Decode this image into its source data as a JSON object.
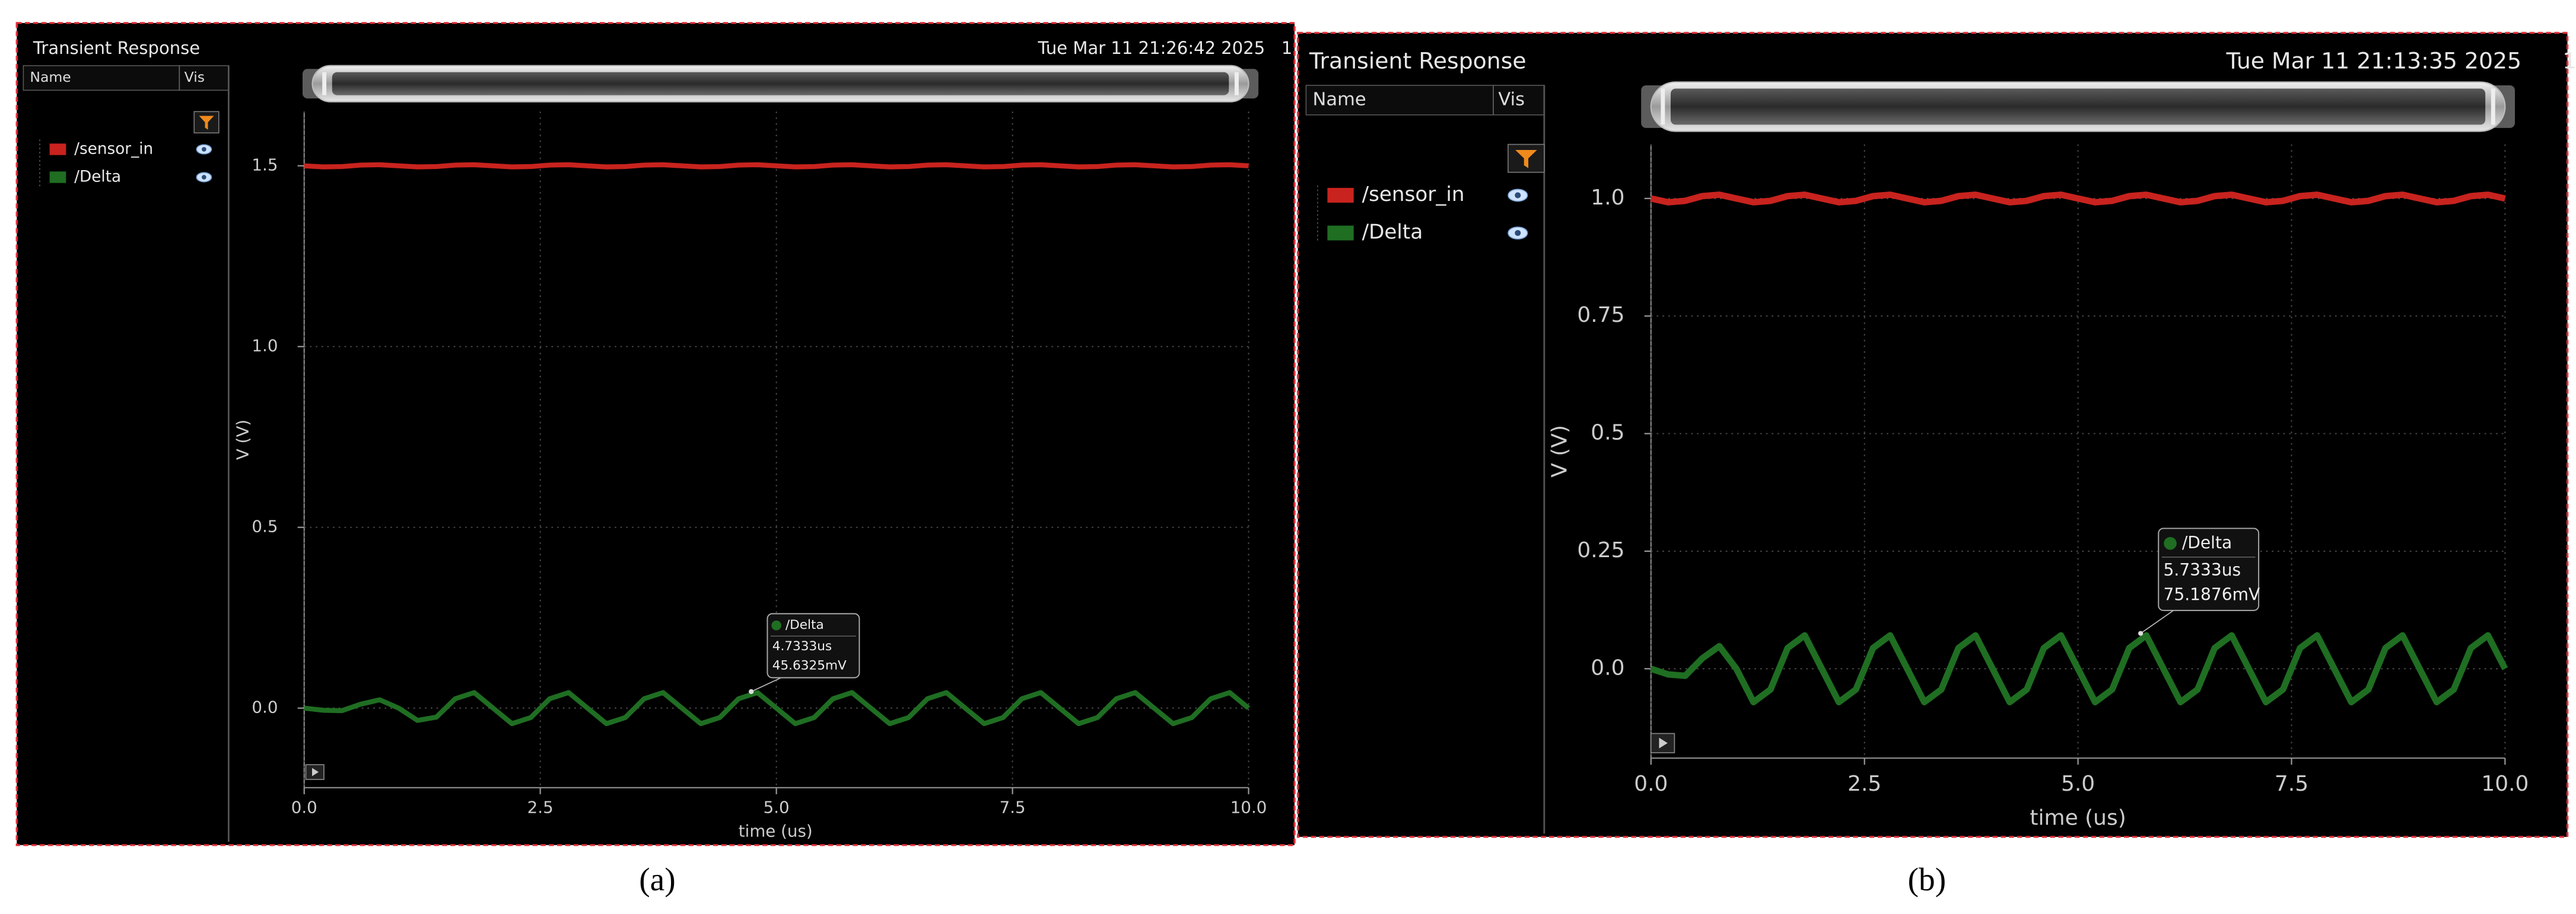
{
  "chart_data": [
    {
      "type": "line",
      "title": "Transient Response",
      "timestamp": "Tue Mar 11 21:26:42 2025",
      "corner_text": "1",
      "list_headers": [
        "Name",
        "Vis"
      ],
      "caption": "(a)",
      "xlabel": "time (us)",
      "ylabel": "V (V)",
      "xlim": [
        0,
        10
      ],
      "ylim": [
        -0.22,
        1.65
      ],
      "xticks": [
        {
          "value": 0,
          "label": "0.0"
        },
        2.5,
        {
          "value": 5,
          "label": "5.0"
        },
        7.5,
        {
          "value": 10,
          "label": "10.0"
        }
      ],
      "yticks": [
        {
          "value": 0,
          "label": "0.0"
        },
        0.5,
        {
          "value": 1,
          "label": "1.0"
        },
        1.5
      ],
      "grid": true,
      "x": [
        0,
        0.2,
        0.4,
        0.6,
        0.8,
        1,
        1.2,
        1.4,
        1.6,
        1.8,
        2,
        2.2,
        2.4,
        2.6,
        2.8,
        3,
        3.2,
        3.4,
        3.6,
        3.8,
        4,
        4.2,
        4.4,
        4.6,
        4.8,
        5,
        5.2,
        5.4,
        5.6,
        5.8,
        6,
        6.2,
        6.4,
        6.6,
        6.8,
        7,
        7.2,
        7.4,
        7.6,
        7.8,
        8,
        8.2,
        8.4,
        8.6,
        8.8,
        9,
        9.2,
        9.4,
        9.6,
        9.8,
        10
      ],
      "series": [
        {
          "name": "/sensor_in",
          "color": "#c8231e",
          "values": [
            1.5,
            1.497,
            1.498,
            1.502,
            1.503,
            1.5,
            1.497,
            1.498,
            1.502,
            1.503,
            1.5,
            1.497,
            1.498,
            1.502,
            1.503,
            1.5,
            1.497,
            1.498,
            1.502,
            1.503,
            1.5,
            1.497,
            1.498,
            1.502,
            1.503,
            1.5,
            1.497,
            1.498,
            1.502,
            1.503,
            1.5,
            1.497,
            1.498,
            1.502,
            1.503,
            1.5,
            1.497,
            1.498,
            1.502,
            1.503,
            1.5,
            1.497,
            1.498,
            1.502,
            1.503,
            1.5,
            1.497,
            1.498,
            1.502,
            1.503,
            1.5
          ]
        },
        {
          "name": "/Delta",
          "color": "#1f6e22",
          "values": [
            0,
            -0.006,
            -0.007,
            0.011,
            0.023,
            0,
            -0.034,
            -0.025,
            0.026,
            0.043,
            0,
            -0.043,
            -0.026,
            0.026,
            0.043,
            0,
            -0.043,
            -0.026,
            0.026,
            0.043,
            0,
            -0.043,
            -0.026,
            0.026,
            0.043,
            0,
            -0.043,
            -0.026,
            0.026,
            0.043,
            0,
            -0.043,
            -0.026,
            0.026,
            0.043,
            0,
            -0.043,
            -0.026,
            0.026,
            0.043,
            0,
            -0.043,
            -0.026,
            0.026,
            0.043,
            0,
            -0.043,
            -0.026,
            0.026,
            0.043,
            0
          ]
        }
      ],
      "cursor": {
        "label": "/Delta",
        "x_text": "4.7333us",
        "y_text": "45.6325mV",
        "x": 4.7333,
        "y": 0.0456325
      }
    },
    {
      "type": "line",
      "title": "Transient Response",
      "timestamp": "Tue Mar 11 21:13:35 2025",
      "corner_text": "1",
      "list_headers": [
        "Name",
        "Vis"
      ],
      "caption": "(b)",
      "xlabel": "time (us)",
      "ylabel": "V (V)",
      "xlim": [
        0,
        10
      ],
      "ylim": [
        -0.19,
        1.115
      ],
      "xticks": [
        {
          "value": 0,
          "label": "0.0"
        },
        2.5,
        {
          "value": 5,
          "label": "5.0"
        },
        7.5,
        {
          "value": 10,
          "label": "10.0"
        }
      ],
      "yticks": [
        {
          "value": 0,
          "label": "0.0"
        },
        0.25,
        0.5,
        0.75,
        {
          "value": 1,
          "label": "1.0"
        }
      ],
      "grid": true,
      "x": [
        0,
        0.2,
        0.4,
        0.6,
        0.8,
        1,
        1.2,
        1.4,
        1.6,
        1.8,
        2,
        2.2,
        2.4,
        2.6,
        2.8,
        3,
        3.2,
        3.4,
        3.6,
        3.8,
        4,
        4.2,
        4.4,
        4.6,
        4.8,
        5,
        5.2,
        5.4,
        5.6,
        5.8,
        6,
        6.2,
        6.4,
        6.6,
        6.8,
        7,
        7.2,
        7.4,
        7.6,
        7.8,
        8,
        8.2,
        8.4,
        8.6,
        8.8,
        9,
        9.2,
        9.4,
        9.6,
        9.8,
        10
      ],
      "series": [
        {
          "name": "/sensor_in",
          "color": "#c8231e",
          "values": [
            1,
            0.992,
            0.995,
            1.005,
            1.008,
            1,
            0.992,
            0.995,
            1.005,
            1.008,
            1,
            0.992,
            0.995,
            1.005,
            1.008,
            1,
            0.992,
            0.995,
            1.005,
            1.008,
            1,
            0.992,
            0.995,
            1.005,
            1.008,
            1,
            0.992,
            0.995,
            1.005,
            1.008,
            1,
            0.992,
            0.995,
            1.005,
            1.008,
            1,
            0.992,
            0.995,
            1.005,
            1.008,
            1,
            0.992,
            0.995,
            1.005,
            1.008,
            1,
            0.992,
            0.995,
            1.005,
            1.008,
            1
          ]
        },
        {
          "name": "/Delta",
          "color": "#1f6e22",
          "values": [
            0,
            -0.012,
            -0.015,
            0.022,
            0.048,
            0,
            -0.071,
            -0.044,
            0.044,
            0.071,
            0,
            -0.071,
            -0.044,
            0.044,
            0.071,
            0,
            -0.071,
            -0.044,
            0.044,
            0.071,
            0,
            -0.071,
            -0.044,
            0.044,
            0.071,
            0,
            -0.071,
            -0.044,
            0.044,
            0.071,
            0,
            -0.071,
            -0.044,
            0.044,
            0.071,
            0,
            -0.071,
            -0.044,
            0.044,
            0.071,
            0,
            -0.071,
            -0.044,
            0.044,
            0.071,
            0,
            -0.071,
            -0.044,
            0.044,
            0.071,
            0
          ]
        }
      ],
      "cursor": {
        "label": "/Delta",
        "x_text": "5.7333us",
        "y_text": "75.1876mV",
        "x": 5.7333,
        "y": 0.0751876
      }
    }
  ]
}
